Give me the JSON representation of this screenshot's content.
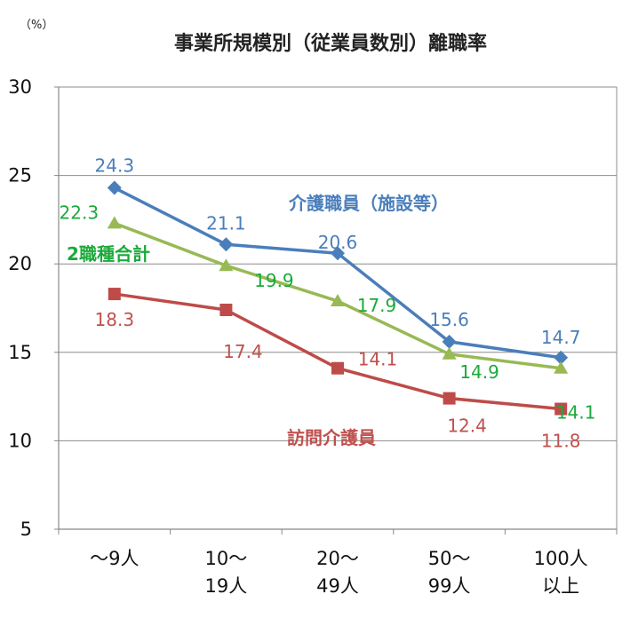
{
  "chart_data": {
    "type": "line",
    "title": "事業所規模別（従業員数別）離職率",
    "unit_label": "（%）",
    "categories": [
      [
        "～9人"
      ],
      [
        "10～",
        "19人"
      ],
      [
        "20～",
        "49人"
      ],
      [
        "50～",
        "99人"
      ],
      [
        "100人",
        "以上"
      ]
    ],
    "ylim": [
      5,
      30
    ],
    "yticks": [
      5,
      10,
      15,
      20,
      25,
      30
    ],
    "grid": true,
    "series": [
      {
        "name": "介護職員（施設等）",
        "values": [
          24.3,
          21.1,
          20.6,
          15.6,
          14.7
        ],
        "color": "#4a7ebb",
        "marker": "diamond"
      },
      {
        "name": "2職種合計",
        "values": [
          22.3,
          19.9,
          17.9,
          14.9,
          14.1
        ],
        "color": "#98b954",
        "label_color": "#1aaa3a",
        "marker": "triangle"
      },
      {
        "name": "訪問介護員",
        "values": [
          18.3,
          17.4,
          14.1,
          12.4,
          11.8
        ],
        "color": "#be4b48",
        "label_color": "#c0504d",
        "marker": "square"
      }
    ]
  }
}
